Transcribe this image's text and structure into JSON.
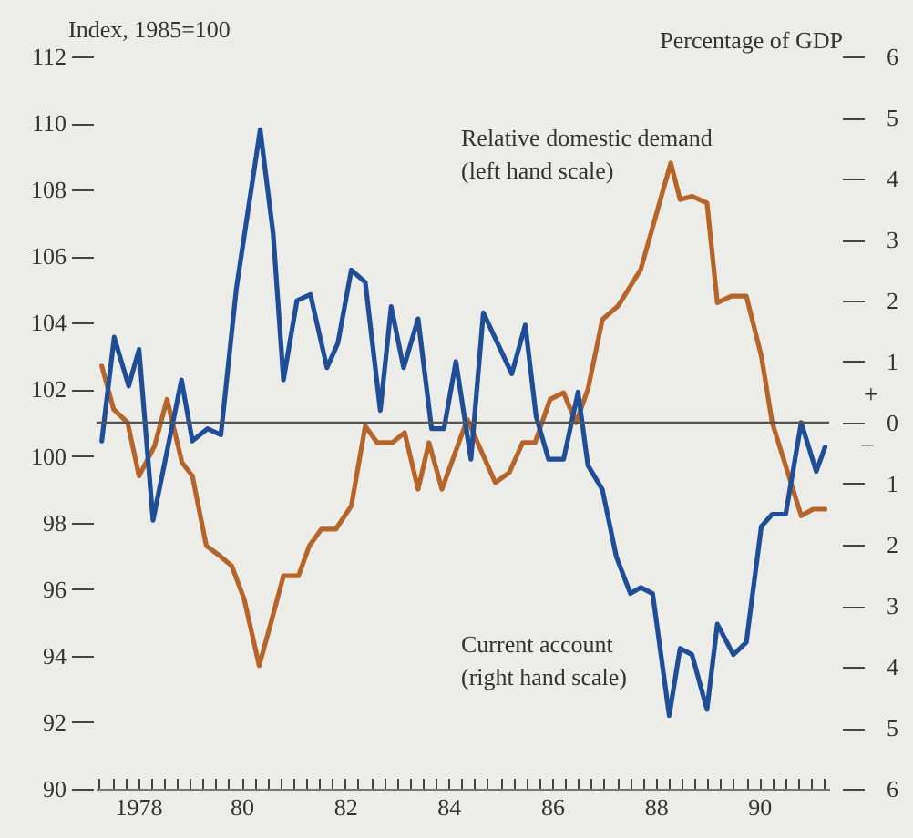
{
  "chart_data": {
    "type": "line",
    "ylabel": "Index, 1985=100",
    "y2label": "Percentage of GDP",
    "xlim": [
      1977.2,
      1991.35
    ],
    "xticks": [
      {
        "value": 1977.25,
        "label": null
      },
      {
        "value": 1977.5,
        "label": null
      },
      {
        "value": 1977.75,
        "label": null
      },
      {
        "value": 1978,
        "label": "1978"
      },
      {
        "value": 1978.25,
        "label": null
      },
      {
        "value": 1978.5,
        "label": null
      },
      {
        "value": 1978.75,
        "label": null
      },
      {
        "value": 1979,
        "label": null
      },
      {
        "value": 1979.25,
        "label": null
      },
      {
        "value": 1979.5,
        "label": null
      },
      {
        "value": 1979.75,
        "label": null
      },
      {
        "value": 1980,
        "label": "80"
      },
      {
        "value": 1980.25,
        "label": null
      },
      {
        "value": 1980.5,
        "label": null
      },
      {
        "value": 1980.75,
        "label": null
      },
      {
        "value": 1981,
        "label": null
      },
      {
        "value": 1981.25,
        "label": null
      },
      {
        "value": 1981.5,
        "label": null
      },
      {
        "value": 1981.75,
        "label": null
      },
      {
        "value": 1982,
        "label": "82"
      },
      {
        "value": 1982.25,
        "label": null
      },
      {
        "value": 1982.5,
        "label": null
      },
      {
        "value": 1982.75,
        "label": null
      },
      {
        "value": 1983,
        "label": null
      },
      {
        "value": 1983.25,
        "label": null
      },
      {
        "value": 1983.5,
        "label": null
      },
      {
        "value": 1983.75,
        "label": null
      },
      {
        "value": 1984,
        "label": "84"
      },
      {
        "value": 1984.25,
        "label": null
      },
      {
        "value": 1984.5,
        "label": null
      },
      {
        "value": 1984.75,
        "label": null
      },
      {
        "value": 1985,
        "label": null
      },
      {
        "value": 1985.25,
        "label": null
      },
      {
        "value": 1985.5,
        "label": null
      },
      {
        "value": 1985.75,
        "label": null
      },
      {
        "value": 1986,
        "label": "86"
      },
      {
        "value": 1986.25,
        "label": null
      },
      {
        "value": 1986.5,
        "label": null
      },
      {
        "value": 1986.75,
        "label": null
      },
      {
        "value": 1987,
        "label": null
      },
      {
        "value": 1987.25,
        "label": null
      },
      {
        "value": 1987.5,
        "label": null
      },
      {
        "value": 1987.75,
        "label": null
      },
      {
        "value": 1988,
        "label": "88"
      },
      {
        "value": 1988.25,
        "label": null
      },
      {
        "value": 1988.5,
        "label": null
      },
      {
        "value": 1988.75,
        "label": null
      },
      {
        "value": 1989,
        "label": null
      },
      {
        "value": 1989.25,
        "label": null
      },
      {
        "value": 1989.5,
        "label": null
      },
      {
        "value": 1989.75,
        "label": null
      },
      {
        "value": 1990,
        "label": "90"
      },
      {
        "value": 1990.25,
        "label": null
      },
      {
        "value": 1990.5,
        "label": null
      },
      {
        "value": 1990.75,
        "label": null
      },
      {
        "value": 1991,
        "label": null
      },
      {
        "value": 1991.25,
        "label": null
      }
    ],
    "ylim": [
      90,
      112
    ],
    "yticks": [
      90,
      92,
      94,
      96,
      98,
      100,
      102,
      104,
      106,
      108,
      110,
      112
    ],
    "y2lim": [
      -6,
      6
    ],
    "y2ticks": [
      {
        "value": -6,
        "label": "6"
      },
      {
        "value": -5,
        "label": "5"
      },
      {
        "value": -4,
        "label": "4"
      },
      {
        "value": -3,
        "label": "3"
      },
      {
        "value": -2,
        "label": "2"
      },
      {
        "value": -1,
        "label": "1"
      },
      0,
      1,
      2,
      3,
      4,
      5,
      6
    ],
    "series": [
      {
        "name": "Relative domestic demand (left hand scale)",
        "color": "#b5652a",
        "axis": "y",
        "x": [
          1977.3,
          1977.53,
          1977.8,
          1978.02,
          1978.32,
          1978.56,
          1978.85,
          1979.05,
          1979.32,
          1979.58,
          1979.81,
          1980.05,
          1980.34,
          1980.57,
          1980.81,
          1981.1,
          1981.31,
          1981.54,
          1981.82,
          1982.12,
          1982.39,
          1982.62,
          1982.91,
          1983.15,
          1983.41,
          1983.62,
          1983.87,
          1984.36,
          1984.9,
          1985.17,
          1985.43,
          1985.67,
          1985.96,
          1986.22,
          1986.46,
          1986.69,
          1986.97,
          1987.27,
          1987.71,
          1988.29,
          1988.47,
          1988.7,
          1988.99,
          1989.19,
          1989.46,
          1989.75,
          1990.04,
          1990.25,
          1990.81,
          1991.04,
          1991.27
        ],
        "values": [
          102.7,
          101.4,
          101.0,
          99.4,
          100.3,
          101.7,
          99.8,
          99.4,
          97.3,
          97.0,
          96.7,
          95.7,
          93.7,
          95.0,
          96.4,
          96.4,
          97.3,
          97.8,
          97.8,
          98.5,
          100.9,
          100.4,
          100.4,
          100.7,
          99.0,
          100.4,
          99.0,
          101.1,
          99.2,
          99.5,
          100.4,
          100.4,
          101.7,
          101.9,
          101.0,
          102.0,
          104.1,
          104.5,
          105.6,
          108.8,
          107.7,
          107.8,
          107.6,
          104.6,
          104.8,
          104.8,
          103.0,
          101.0,
          98.2,
          98.4,
          98.4
        ]
      },
      {
        "name": "Current account (right hand scale)",
        "color": "#1f4e96",
        "axis": "y2",
        "x": [
          1977.3,
          1977.54,
          1977.82,
          1978.02,
          1978.29,
          1978.84,
          1979.05,
          1979.34,
          1979.6,
          1979.9,
          1980.36,
          1980.61,
          1980.81,
          1981.07,
          1981.33,
          1981.65,
          1981.86,
          1982.12,
          1982.39,
          1982.68,
          1982.89,
          1983.13,
          1983.41,
          1983.67,
          1983.91,
          1984.14,
          1984.43,
          1984.67,
          1985.22,
          1985.48,
          1985.69,
          1985.93,
          1986.22,
          1986.5,
          1986.69,
          1986.97,
          1987.24,
          1987.51,
          1987.71,
          1987.94,
          1988.26,
          1988.47,
          1988.7,
          1988.99,
          1989.19,
          1989.5,
          1989.75,
          1990.04,
          1990.25,
          1990.51,
          1990.81,
          1991.1,
          1991.27
        ],
        "values": [
          -0.3,
          1.4,
          0.6,
          1.2,
          -1.6,
          0.7,
          -0.3,
          -0.1,
          -0.2,
          2.2,
          4.8,
          3.1,
          0.7,
          2.0,
          2.1,
          0.9,
          1.3,
          2.5,
          2.3,
          0.2,
          1.9,
          0.9,
          1.7,
          -0.1,
          -0.1,
          1.0,
          -0.6,
          1.8,
          0.8,
          1.6,
          0.1,
          -0.6,
          -0.6,
          0.5,
          -0.7,
          -1.1,
          -2.2,
          -2.8,
          -2.7,
          -2.8,
          -4.8,
          -3.7,
          -3.8,
          -4.7,
          -3.3,
          -3.8,
          -3.6,
          -1.7,
          -1.5,
          -1.5,
          0.0,
          -0.8,
          -0.4
        ]
      }
    ],
    "ref_lines": [
      {
        "axis": "y2",
        "value": 0,
        "color": "#555555"
      }
    ],
    "annotations": [
      "+",
      "−"
    ]
  }
}
